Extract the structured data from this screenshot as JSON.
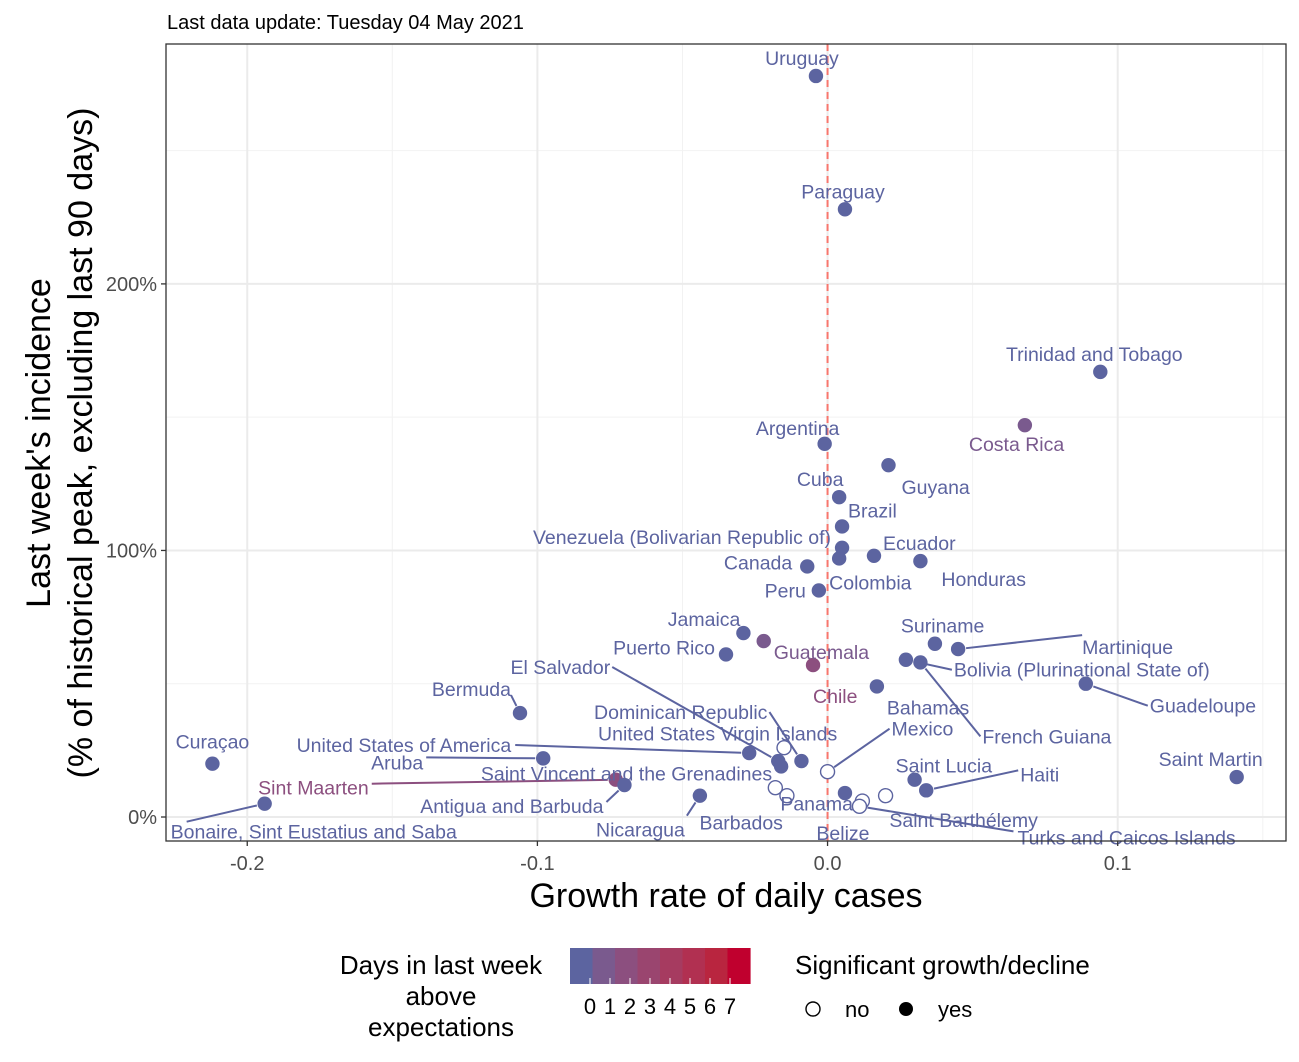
{
  "chart_data": {
    "type": "scatter",
    "subtitle": "Last data update: Tuesday 04 May 2021",
    "title": "",
    "xlabel": "Growth rate of daily cases",
    "ylabel_line1": "Last week's incidence",
    "ylabel_line2": "(% of historical peak, excluding last 90 days)",
    "xlim": [
      -0.228,
      0.158
    ],
    "ylim": [
      -9,
      290
    ],
    "x_ticks": [
      {
        "value": -0.2,
        "label": "-0.2"
      },
      {
        "value": -0.1,
        "label": "-0.1"
      },
      {
        "value": 0.0,
        "label": "0.0"
      },
      {
        "value": 0.1,
        "label": "0.1"
      }
    ],
    "y_ticks": [
      {
        "value": 0,
        "label": "0%"
      },
      {
        "value": 100,
        "label": "100%"
      },
      {
        "value": 200,
        "label": "200%"
      }
    ],
    "reference_line": {
      "x": 0,
      "style": "dashed",
      "color": "#F8766D"
    },
    "grid": true,
    "colors": {
      "d0": "#5C64A0",
      "d1": "#7A5A8E",
      "d2": "#8C4F7F",
      "d7": "#C0002E",
      "reference": "#F8766D"
    },
    "points": [
      {
        "label": "Uruguay",
        "x": -0.004,
        "y": 278,
        "days": 0,
        "significant": true
      },
      {
        "label": "Paraguay",
        "x": 0.006,
        "y": 228,
        "days": 0,
        "significant": true
      },
      {
        "label": "Trinidad and Tobago",
        "x": 0.094,
        "y": 167,
        "days": 0,
        "significant": true
      },
      {
        "label": "Costa Rica",
        "x": 0.068,
        "y": 147,
        "days": 1,
        "significant": true
      },
      {
        "label": "Argentina",
        "x": -0.001,
        "y": 140,
        "days": 0,
        "significant": true
      },
      {
        "label": "Guyana",
        "x": 0.021,
        "y": 132,
        "days": 0,
        "significant": true
      },
      {
        "label": "Cuba",
        "x": 0.004,
        "y": 120,
        "days": 0,
        "significant": true
      },
      {
        "label": "Brazil",
        "x": 0.005,
        "y": 109,
        "days": 0,
        "significant": true
      },
      {
        "label": "Venezuela (Bolivarian Republic of)",
        "x": 0.005,
        "y": 101,
        "days": 0,
        "significant": true
      },
      {
        "label": "Ecuador",
        "x": 0.016,
        "y": 98,
        "days": 0,
        "significant": true
      },
      {
        "label": "Canada",
        "x": -0.007,
        "y": 94,
        "days": 0,
        "significant": true
      },
      {
        "label": "Colombia",
        "x": 0.004,
        "y": 97,
        "days": 0,
        "significant": true
      },
      {
        "label": "Honduras",
        "x": 0.032,
        "y": 96,
        "days": 0,
        "significant": true
      },
      {
        "label": "Peru",
        "x": -0.003,
        "y": 85,
        "days": 0,
        "significant": true
      },
      {
        "label": "Jamaica",
        "x": -0.029,
        "y": 69,
        "days": 0,
        "significant": true
      },
      {
        "label": "Guatemala",
        "x": -0.022,
        "y": 66,
        "days": 1,
        "significant": true
      },
      {
        "label": "Suriname",
        "x": 0.037,
        "y": 65,
        "days": 0,
        "significant": true
      },
      {
        "label": "Martinique",
        "x": 0.045,
        "y": 63,
        "days": 0,
        "significant": true
      },
      {
        "label": "Puerto Rico",
        "x": -0.035,
        "y": 61,
        "days": 0,
        "significant": true
      },
      {
        "label": "Chile",
        "x": -0.005,
        "y": 57,
        "days": 2,
        "significant": true
      },
      {
        "label": "Bolivia (Plurinational State of)",
        "x": 0.027,
        "y": 59,
        "days": 0,
        "significant": true
      },
      {
        "label": "French Guiana",
        "x": 0.032,
        "y": 58,
        "days": 0,
        "significant": true
      },
      {
        "label": "Bahamas",
        "x": 0.017,
        "y": 49,
        "days": 0,
        "significant": true
      },
      {
        "label": "Guadeloupe",
        "x": 0.089,
        "y": 50,
        "days": 0,
        "significant": true
      },
      {
        "label": "El Salvador",
        "x": -0.017,
        "y": 21,
        "days": 0,
        "significant": true
      },
      {
        "label": "Dominican Republic",
        "x": -0.009,
        "y": 21,
        "days": 0,
        "significant": true
      },
      {
        "label": "United States Virgin Islands",
        "x": -0.015,
        "y": 26,
        "days": 0,
        "significant": false
      },
      {
        "label": "Mexico",
        "x": 0.0,
        "y": 17,
        "days": 0,
        "significant": false
      },
      {
        "label": "Bermuda",
        "x": -0.106,
        "y": 39,
        "days": 0,
        "significant": true
      },
      {
        "label": "United States of America",
        "x": -0.027,
        "y": 24,
        "days": 0,
        "significant": true
      },
      {
        "label": "Curaçao",
        "x": -0.212,
        "y": 20,
        "days": 0,
        "significant": true
      },
      {
        "label": "Aruba",
        "x": -0.098,
        "y": 22,
        "days": 0,
        "significant": true
      },
      {
        "label": "Saint Vincent and the Grenadines",
        "x": -0.016,
        "y": 19,
        "days": 0,
        "significant": true
      },
      {
        "label": "Sint Maarten",
        "x": -0.073,
        "y": 14,
        "days": 2,
        "significant": true
      },
      {
        "label": "Antigua and Barbuda",
        "x": -0.07,
        "y": 12,
        "days": 0,
        "significant": true
      },
      {
        "label": "Panama",
        "x": -0.018,
        "y": 11,
        "days": 0,
        "significant": false
      },
      {
        "label": "Saint Lucia",
        "x": 0.03,
        "y": 14,
        "days": 0,
        "significant": true
      },
      {
        "label": "Haiti",
        "x": 0.034,
        "y": 10,
        "days": 0,
        "significant": true
      },
      {
        "label": "Saint Martin",
        "x": 0.141,
        "y": 15,
        "days": 0,
        "significant": true
      },
      {
        "label": "Barbados",
        "x": -0.014,
        "y": 8,
        "days": 0,
        "significant": false
      },
      {
        "label": "Belize",
        "x": 0.006,
        "y": 9,
        "days": 0,
        "significant": true
      },
      {
        "label": "Saint Barthélemy",
        "x": 0.012,
        "y": 6,
        "days": 0,
        "significant": false
      },
      {
        "label": "Turks and Caicos Islands",
        "x": 0.011,
        "y": 4,
        "days": 0,
        "significant": false
      },
      {
        "label": "Nicaragua",
        "x": -0.044,
        "y": 8,
        "days": 0,
        "significant": true
      },
      {
        "label": "Bonaire, Sint Eustatius and Saba",
        "x": -0.194,
        "y": 5,
        "days": 0,
        "significant": true
      },
      {
        "label": "",
        "x": 0.02,
        "y": 8,
        "days": 0,
        "significant": false
      }
    ],
    "legend": {
      "position": "bottom",
      "color_title_line1": "Days in last week",
      "color_title_line2": "above",
      "color_title_line3": "expectations",
      "color_labels": [
        "0",
        "1",
        "2",
        "3",
        "4",
        "5",
        "6",
        "7"
      ],
      "shape_title": "Significant growth/decline",
      "shape_no_label": "no",
      "shape_yes_label": "yes"
    }
  }
}
